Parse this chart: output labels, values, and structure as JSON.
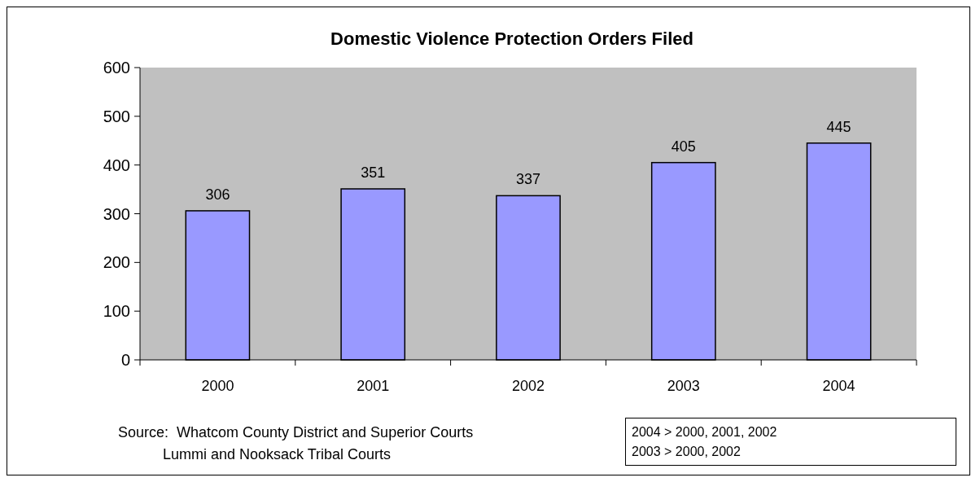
{
  "chart_data": {
    "type": "bar",
    "title": "Domestic Violence Protection Orders Filed",
    "categories": [
      "2000",
      "2001",
      "2002",
      "2003",
      "2004"
    ],
    "values": [
      306,
      351,
      337,
      405,
      445
    ],
    "color": "#9999ff",
    "ylim": [
      0,
      600
    ],
    "yticks": [
      0,
      100,
      200,
      300,
      400,
      500,
      600
    ],
    "grid": false,
    "data_labels": true,
    "annotations": [
      "Source:  Whatcom County District and Superior Courts\n           Lummi and Nooksack Tribal Courts",
      "2004 > 2000, 2001, 2002\n2003 > 2000, 2002"
    ]
  }
}
